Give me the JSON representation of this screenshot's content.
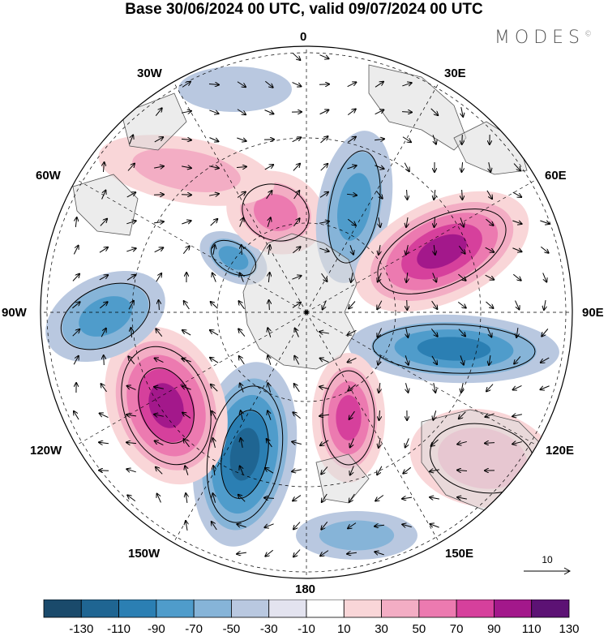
{
  "title": "Base 30/06/2024 00 UTC, valid 09/07/2024 00 UTC",
  "logo": "MODES",
  "logo_mark": "©",
  "longitude_labels": {
    "top": "0",
    "top_right": "30E",
    "upper_right": "60E",
    "right": "90E",
    "lower_right": "120E",
    "bottom_right": "150E",
    "bottom": "180",
    "bottom_left": "150W",
    "lower_left": "120W",
    "left": "90W",
    "upper_left": "60W",
    "top_left": "30W"
  },
  "reference_vector": "10",
  "colorbar": {
    "labels": [
      "-130",
      "-110",
      "-90",
      "-70",
      "-50",
      "-30",
      "-10",
      "10",
      "30",
      "50",
      "70",
      "90",
      "110",
      "130"
    ],
    "colors": [
      "#1a4a6b",
      "#1f6592",
      "#2b7fb3",
      "#4f9ccb",
      "#86b4d8",
      "#b9c8e0",
      "#e3e3ef",
      "#ffffff",
      "#f9d6d8",
      "#f3adc4",
      "#ec7ab0",
      "#d6409c",
      "#a3188b",
      "#5c1274"
    ]
  }
}
